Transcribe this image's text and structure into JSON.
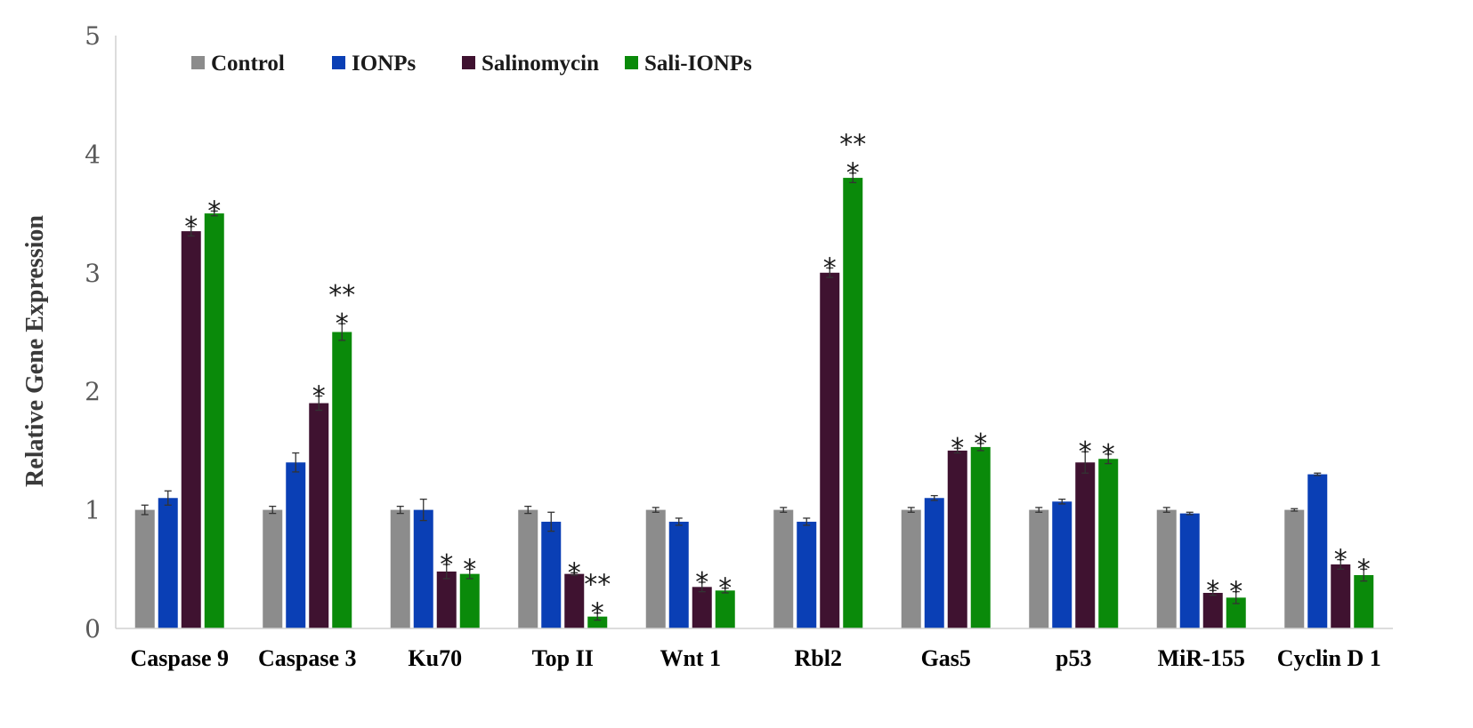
{
  "chart_data": {
    "type": "bar",
    "title": "",
    "xlabel": "",
    "ylabel": "Relative Gene Expression",
    "ylim": [
      0,
      5
    ],
    "yticks": [
      "0",
      "1",
      "2",
      "3",
      "4",
      "5"
    ],
    "grid": false,
    "legend_position": "top-left",
    "categories": [
      "Caspase 9",
      "Caspase 3",
      "Ku70",
      "Top II",
      "Wnt 1",
      "Rbl2",
      "Gas5",
      "p53",
      "MiR-155",
      "Cyclin D 1"
    ],
    "series": [
      {
        "name": "Control",
        "color": "#8c8c8c",
        "values": [
          1.0,
          1.0,
          1.0,
          1.0,
          1.0,
          1.0,
          1.0,
          1.0,
          1.0,
          1.0
        ],
        "errors": [
          0.04,
          0.03,
          0.03,
          0.03,
          0.02,
          0.02,
          0.02,
          0.02,
          0.02,
          0.01
        ]
      },
      {
        "name": "IONPs",
        "color": "#0a3fb5",
        "values": [
          1.1,
          1.4,
          1.0,
          0.9,
          0.9,
          0.9,
          1.1,
          1.07,
          0.97,
          1.3
        ],
        "errors": [
          0.06,
          0.08,
          0.09,
          0.08,
          0.03,
          0.03,
          0.02,
          0.02,
          0.01,
          0.01
        ]
      },
      {
        "name": "Salinomycin",
        "color": "#3f1230",
        "values": [
          3.35,
          1.9,
          0.48,
          0.46,
          0.35,
          3.0,
          1.5,
          1.4,
          0.3,
          0.54
        ],
        "errors": [
          0.04,
          0.06,
          0.06,
          0.01,
          0.04,
          0.04,
          0.02,
          0.09,
          0.02,
          0.04
        ],
        "annotations": [
          "*",
          "*",
          "*",
          "*",
          "*",
          "*",
          "*",
          "*",
          "*",
          "*"
        ]
      },
      {
        "name": "Sali-IONPs",
        "color": "#0a8a0a",
        "values": [
          3.5,
          2.5,
          0.46,
          0.1,
          0.32,
          3.8,
          1.53,
          1.43,
          0.26,
          0.45
        ],
        "errors": [
          0.02,
          0.07,
          0.04,
          0.03,
          0.02,
          0.04,
          0.03,
          0.04,
          0.05,
          0.05
        ],
        "annotations": [
          "*",
          "**\n*",
          "*",
          "**\n*",
          "*",
          "**\n*",
          "*",
          "*",
          "*",
          "*"
        ]
      }
    ]
  }
}
